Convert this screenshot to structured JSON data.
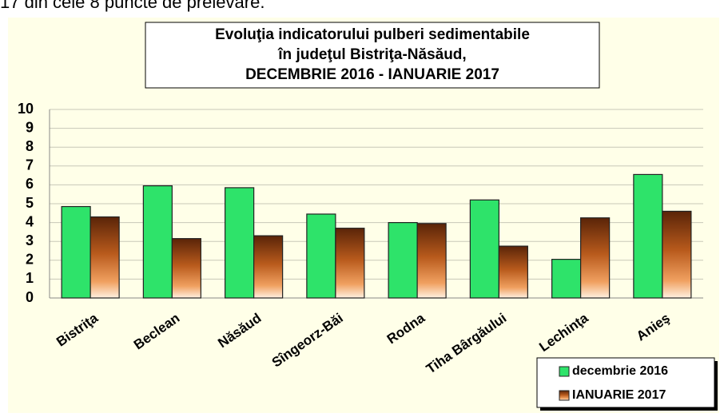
{
  "caption": "17 din cele 8 puncte de prelevare.",
  "chart_data": {
    "type": "bar",
    "title": [
      "Evoluţia indicatorului pulberi sedimentabile",
      "în judeţul Bistriţa-Năsăud,",
      "DECEMBRIE 2016 - IANUARIE 2017"
    ],
    "categories": [
      "Bistriţa",
      "Beclean",
      "Năsăud",
      "Sîngeorz-Băi",
      "Rodna",
      "Tiha Bârgăului",
      "Lechinţa",
      "Anieş"
    ],
    "series": [
      {
        "name": "decembrie 2016",
        "color": "#2ee36a",
        "values": [
          4.85,
          5.95,
          5.85,
          4.45,
          4.0,
          5.2,
          2.05,
          6.55
        ]
      },
      {
        "name": "IANUARIE 2017",
        "color": "#b85a1c",
        "values": [
          4.3,
          3.15,
          3.3,
          3.7,
          3.95,
          2.75,
          4.25,
          4.6
        ]
      }
    ],
    "ylim": [
      0,
      10
    ],
    "yticks": [
      0,
      1,
      2,
      3,
      4,
      5,
      6,
      7,
      8,
      9,
      10
    ],
    "grid": true,
    "legend": "bottom-right"
  }
}
